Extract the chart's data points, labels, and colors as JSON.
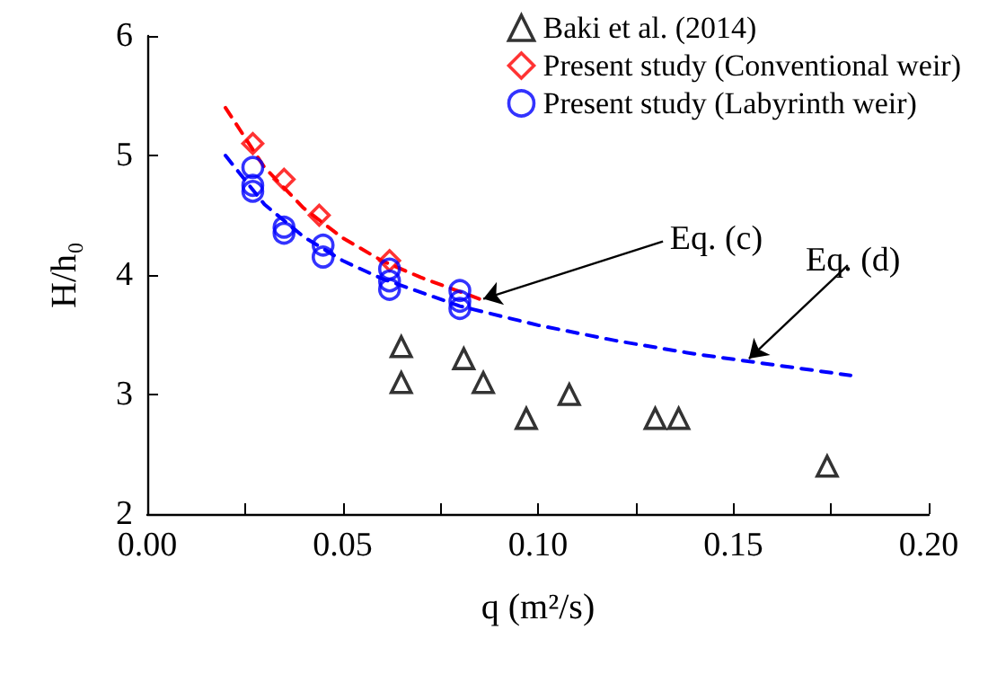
{
  "chart_data": {
    "type": "scatter",
    "xlabel": "q (m²/s)",
    "ylabel": "H/h₀",
    "xlim": [
      0,
      0.2
    ],
    "ylim": [
      2,
      6
    ],
    "xticks": [
      {
        "value": 0,
        "label": "0.00"
      },
      {
        "value": 0.025,
        "label": null
      },
      {
        "value": 0.05,
        "label": "0.05"
      },
      {
        "value": 0.075,
        "label": null
      },
      {
        "value": 0.1,
        "label": "0.10"
      },
      {
        "value": 0.125,
        "label": null
      },
      {
        "value": 0.15,
        "label": "0.15"
      },
      {
        "value": 0.175,
        "label": null
      },
      {
        "value": 0.2,
        "label": "0.20"
      }
    ],
    "yticks": [
      2,
      3,
      4,
      5,
      6
    ],
    "grid": false,
    "legend": "top right",
    "series": [
      {
        "name": "Baki et al. (2014)",
        "type": "scatter",
        "marker": "triangle",
        "color": "#000000",
        "x": [
          0.065,
          0.065,
          0.081,
          0.086,
          0.097,
          0.108,
          0.13,
          0.136,
          0.174
        ],
        "values": [
          3.4,
          3.1,
          3.3,
          3.1,
          2.8,
          3.0,
          2.8,
          2.8,
          2.4
        ]
      },
      {
        "name": "Present study (Conventional weir)",
        "type": "scatter",
        "marker": "diamond",
        "color": "#ff0000",
        "x": [
          0.027,
          0.035,
          0.044,
          0.062
        ],
        "values": [
          5.1,
          4.8,
          4.5,
          4.12
        ]
      },
      {
        "name": "Present study (Labyrinth weir)",
        "type": "scatter",
        "marker": "circle",
        "color": "#0000ff",
        "x": [
          0.027,
          0.027,
          0.027,
          0.035,
          0.035,
          0.045,
          0.045,
          0.062,
          0.062,
          0.062,
          0.08,
          0.08,
          0.08
        ],
        "values": [
          4.9,
          4.75,
          4.7,
          4.4,
          4.35,
          4.25,
          4.15,
          4.05,
          3.95,
          3.88,
          3.87,
          3.78,
          3.72
        ]
      },
      {
        "type": "line",
        "marker": "none",
        "line_style": "dashed",
        "color": "#ff0000",
        "x": [
          0.02,
          0.03,
          0.04,
          0.05,
          0.06,
          0.07,
          0.085
        ],
        "values": [
          5.4,
          4.9,
          4.56,
          4.31,
          4.12,
          3.98,
          3.8
        ]
      },
      {
        "type": "line",
        "marker": "none",
        "line_style": "dashed",
        "color": "#0000ff",
        "x": [
          0.02,
          0.03,
          0.04,
          0.05,
          0.06,
          0.08,
          0.1,
          0.12,
          0.14,
          0.16,
          0.18
        ],
        "values": [
          5.0,
          4.59,
          4.32,
          4.12,
          3.97,
          3.74,
          3.58,
          3.45,
          3.34,
          3.25,
          3.16
        ]
      }
    ],
    "annotations": [
      {
        "text": "Eq. (c)",
        "x": 0.086,
        "y": 3.8
      },
      {
        "text": "Eq. (d)",
        "x": 0.154,
        "y": 3.3
      }
    ]
  }
}
